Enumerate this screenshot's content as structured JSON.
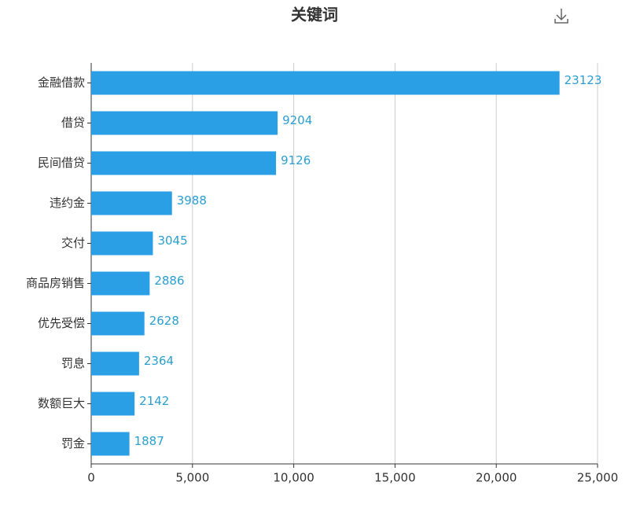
{
  "chart_data": {
    "type": "barh",
    "title": "关键词",
    "categories": [
      "金融借款",
      "借贷",
      "民间借贷",
      "违约金",
      "交付",
      "商品房销售",
      "优先受偿",
      "罚息",
      "数额巨大",
      "罚金"
    ],
    "values": [
      23123,
      9204,
      9126,
      3988,
      3045,
      2886,
      2628,
      2364,
      2142,
      1887
    ],
    "color": "#2b9fe6",
    "label_color": "#2a9fd0",
    "xlim": [
      0,
      25000
    ],
    "xticks": [
      0,
      {
        "value": 5000,
        "label": "5,000"
      },
      {
        "value": 10000,
        "label": "10,000"
      },
      {
        "value": 15000,
        "label": "15,000"
      },
      {
        "value": 20000,
        "label": "20,000"
      },
      {
        "value": 25000,
        "label": "25,000"
      }
    ],
    "grid": true
  }
}
